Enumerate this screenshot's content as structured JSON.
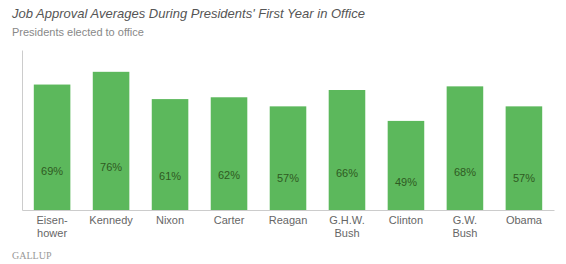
{
  "chart_data": {
    "type": "bar",
    "title": "Job Approval Averages During Presidents' First Year in Office",
    "subtitle": "Presidents elected to office",
    "annotations": [
      "GALLUP"
    ],
    "categories": [
      "Eisen-\nhower",
      "Kennedy",
      "Nixon",
      "Carter",
      "Reagan",
      "G.H.W.\nBush",
      "Clinton",
      "G.W.\nBush",
      "Obama"
    ],
    "values": [
      69,
      76,
      61,
      62,
      57,
      66,
      49,
      68,
      57
    ],
    "value_labels": [
      "69%",
      "76%",
      "61%",
      "62%",
      "57%",
      "66%",
      "49%",
      "68%",
      "57%"
    ],
    "data_labels": true,
    "color": "#5cb85c",
    "ylim": [
      0,
      88
    ],
    "tick_labels": "x",
    "grid": false
  }
}
